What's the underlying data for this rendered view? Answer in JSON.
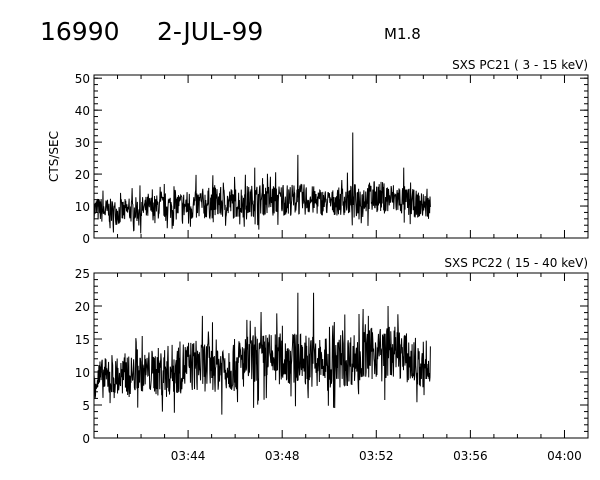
{
  "header": {
    "event_id": "16990",
    "date": "2-JUL-99",
    "flare_class": "M1.8"
  },
  "chart_data": [
    {
      "type": "line",
      "title": "SXS PC21  (  3 - 15 keV)",
      "ylabel": "CTS/SEC",
      "xlim": [
        "03:40",
        "04:01"
      ],
      "ylim": [
        0,
        51
      ],
      "yticks": [
        0,
        10,
        20,
        30,
        40,
        50
      ],
      "xtick_labels": [
        "03:44",
        "03:48",
        "03:52",
        "03:56",
        "04:00"
      ],
      "series": [
        {
          "x": [
            "03:40",
            "03:41",
            "03:42",
            "03:43",
            "03:44",
            "03:45",
            "03:46",
            "03:47",
            "03:48",
            "03:49",
            "03:50",
            "03:51",
            "03:52",
            "03:53",
            "03:54"
          ],
          "values": [
            9,
            8,
            9,
            10,
            10,
            11,
            11,
            12,
            12,
            12,
            11,
            12,
            13,
            12,
            10
          ],
          "spread": [
            4,
            4,
            4,
            4,
            5,
            5,
            5,
            5,
            5,
            5,
            4,
            5,
            5,
            5,
            4
          ],
          "peaks": [
            [
              "03:46:50",
              22
            ],
            [
              "03:48:40",
              26
            ],
            [
              "03:51:00",
              33
            ],
            [
              "03:53:10",
              22
            ]
          ]
        }
      ]
    },
    {
      "type": "line",
      "title": "SXS PC22  ( 15 - 40 keV)",
      "ylabel": "",
      "xlim": [
        "03:40",
        "04:01"
      ],
      "ylim": [
        0,
        25
      ],
      "yticks": [
        0,
        5,
        10,
        15,
        20,
        25
      ],
      "xtick_labels": [
        "03:44",
        "03:48",
        "03:52",
        "03:56",
        "04:00"
      ],
      "series": [
        {
          "x": [
            "03:40",
            "03:41",
            "03:42",
            "03:43",
            "03:44",
            "03:45",
            "03:46",
            "03:47",
            "03:48",
            "03:49",
            "03:50",
            "03:51",
            "03:52",
            "03:53",
            "03:54"
          ],
          "values": [
            9,
            9,
            10,
            10,
            11,
            11,
            11,
            12,
            12,
            12,
            11,
            12,
            13,
            13,
            10
          ],
          "spread": [
            3,
            3,
            3,
            4,
            4,
            4,
            4,
            4,
            4,
            4,
            4,
            4,
            4,
            4,
            3
          ],
          "peaks": [
            [
              "03:48:40",
              22
            ],
            [
              "03:49:20",
              22
            ],
            [
              "03:52:30",
              20
            ]
          ]
        }
      ]
    }
  ]
}
